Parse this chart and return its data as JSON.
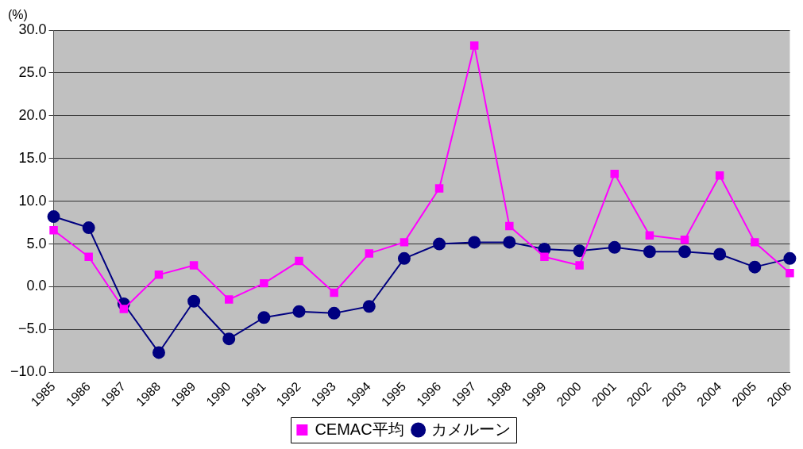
{
  "chart_data": {
    "type": "line",
    "ylabel": "(%)",
    "categories": [
      "1985",
      "1986",
      "1987",
      "1988",
      "1989",
      "1990",
      "1991",
      "1992",
      "1993",
      "1994",
      "1995",
      "1996",
      "1997",
      "1998",
      "1999",
      "2000",
      "2001",
      "2002",
      "2003",
      "2004",
      "2005",
      "2006"
    ],
    "series": [
      {
        "name": "カメルーン",
        "color": "#000080",
        "marker": "circle",
        "values": [
          8.2,
          6.9,
          -2.0,
          -7.7,
          -1.7,
          -6.1,
          -3.6,
          -2.9,
          -3.1,
          -2.3,
          3.3,
          5.0,
          5.2,
          5.2,
          4.4,
          4.2,
          4.6,
          4.1,
          4.1,
          3.8,
          2.3,
          3.3
        ]
      },
      {
        "name": "CEMAC平均",
        "color": "#ff00ff",
        "marker": "square",
        "values": [
          6.6,
          3.5,
          -2.6,
          1.4,
          2.5,
          -1.5,
          0.4,
          3.0,
          -0.7,
          3.9,
          5.2,
          11.5,
          28.2,
          7.1,
          3.5,
          2.5,
          13.2,
          6.0,
          5.5,
          13.0,
          5.2,
          1.6
        ]
      }
    ],
    "ylim": [
      -10,
      30
    ],
    "yticks": [
      {
        "value": -10,
        "label": "−10.0"
      },
      {
        "value": -5,
        "label": "−5.0"
      },
      {
        "value": 0,
        "label": "0.0"
      },
      {
        "value": 5,
        "label": "5.0"
      },
      {
        "value": 10,
        "label": "10.0"
      },
      {
        "value": 15,
        "label": "15.0"
      },
      {
        "value": 20,
        "label": "20.0"
      },
      {
        "value": 25,
        "label": "25.0"
      },
      {
        "value": 30,
        "label": "30.0"
      }
    ],
    "grid": "y",
    "legend": "bottom",
    "line_style": "solid"
  }
}
